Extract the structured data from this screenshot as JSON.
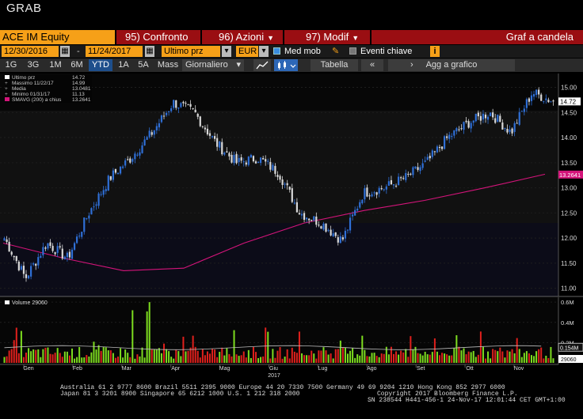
{
  "window": {
    "title": "GRAB"
  },
  "toolbar1": {
    "security": "ACE IM Equity",
    "menu1": "95) Confronto",
    "menu2": "96) Azioni",
    "menu3": "97) Modif",
    "chart_title": "Graf a candela"
  },
  "toolbar2": {
    "start_date": "12/30/2016",
    "dash": "-",
    "end_date": "11/24/2017",
    "price_field": "Ultimo prz",
    "currency": "EUR",
    "moving_avg_label": "Med mob",
    "moving_avg_checked": true,
    "events_label": "Eventi chiave",
    "events_checked": false,
    "info_icon": "i"
  },
  "toolbar3": {
    "periods": [
      "1G",
      "3G",
      "1M",
      "6M",
      "YTD",
      "1A",
      "5A",
      "Mass"
    ],
    "selected_period": "YTD",
    "frequency": "Giornaliero",
    "table_label": "Tabella",
    "add_label": "Agg a grafico"
  },
  "legend": [
    {
      "label": "Ultimo prz",
      "value": "14.72"
    },
    {
      "label": "Massimo 11/22/17",
      "value": "14.99"
    },
    {
      "label": "Media",
      "value": "13.0481"
    },
    {
      "label": "Minimo 01/31/17",
      "value": "11.13"
    },
    {
      "label": "SMAVG (200) a chius",
      "value": "13.2641"
    }
  ],
  "volume_legend": {
    "label": "Volume",
    "value": "29060"
  },
  "price_axis": {
    "ticks": [
      "15.00",
      "14.50",
      "14.00",
      "13.50",
      "13.00",
      "12.50",
      "12.00",
      "11.50",
      "11.00"
    ],
    "last_price_tag": "14.72",
    "sma_tag": "13.2641"
  },
  "volume_axis": {
    "ticks": [
      "0.6M",
      "0.4M",
      "0.2M"
    ],
    "avg_tag": "0.154M",
    "last_tag": "29060"
  },
  "months": [
    "Gen",
    "Feb",
    "Mar",
    "Apr",
    "Mag",
    "Giu",
    "Lug",
    "Ago",
    "Set",
    "Ott",
    "Nov"
  ],
  "year_label": "2017",
  "colors": {
    "up": "#2f6fd6",
    "down": "#d9d9d9",
    "sma": "#d4147a",
    "vol_up": "#7ddc1f",
    "vol_down": "#e0201c",
    "highlight": "#f6a018",
    "bar": "#9a0e12"
  },
  "footer": {
    "line1": "Australia 61 2 9777 8600 Brazil 5511 2395 9000 Europe 44 20 7330 7500 Germany 49 69 9204 1210 Hong Kong 852 2977 6000",
    "line2a": "Japan 81 3 3201 8900         Singapore 65 6212 1000         U.S. 1 212 318 2000",
    "line2b": "Copyright 2017 Bloomberg Finance L.P.",
    "line3": "SN 238544 H441-456-1 24-Nov-17 12:01:44 CET  GMT+1:00"
  },
  "chart_data": {
    "type": "candlestick",
    "title": "",
    "x": [
      "Gen",
      "Feb",
      "Mar",
      "Apr",
      "Mag",
      "Giu",
      "Lug",
      "Ago",
      "Set",
      "Ott",
      "Nov"
    ],
    "price_anchors": [
      12.0,
      11.2,
      11.9,
      11.6,
      12.5,
      13.2,
      13.6,
      14.1,
      14.7,
      14.5,
      13.9,
      13.5,
      13.6,
      13.3,
      12.5,
      12.3,
      11.95,
      12.9,
      13.0,
      13.2,
      13.5,
      14.0,
      14.3,
      14.5,
      14.1,
      14.9,
      14.72
    ],
    "sma200_anchors": [
      11.9,
      11.6,
      11.35,
      11.4,
      11.9,
      12.3,
      12.55,
      12.75,
      13.0,
      13.27
    ],
    "volume_peaks": [
      0.35,
      0.25,
      0.6,
      0.3,
      0.4,
      0.35,
      0.3,
      0.35,
      0.3,
      0.35,
      0.4
    ],
    "ylim": [
      10.9,
      15.15
    ],
    "volume_ylim": [
      0,
      0.64
    ]
  }
}
